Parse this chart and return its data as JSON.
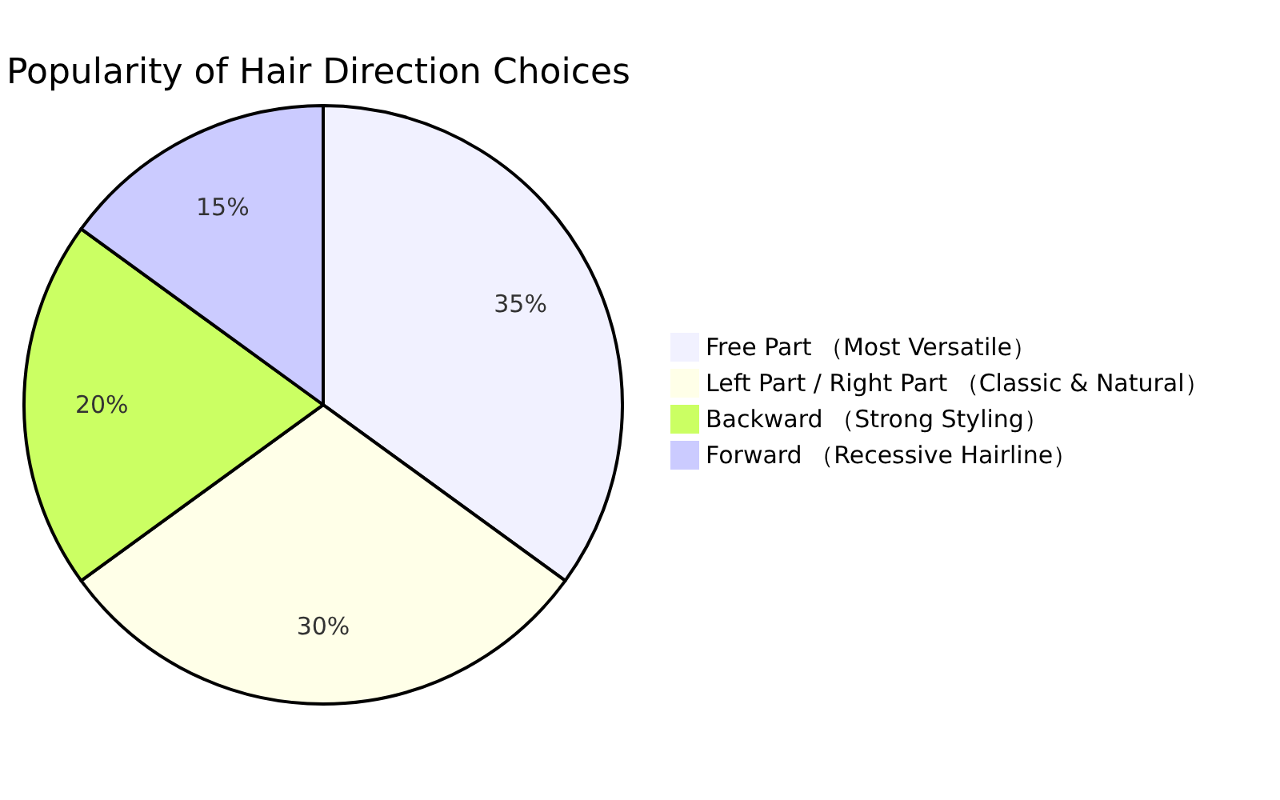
{
  "chart_data": {
    "type": "pie",
    "title": "Popularity of Hair Direction Choices",
    "categories": [
      "Free Part （Most Versatile）",
      "Left Part / Right Part （Classic & Natural）",
      "Backward （Strong Styling）",
      "Forward （Recessive Hairline）"
    ],
    "values": [
      35,
      30,
      20,
      15
    ],
    "colors": [
      "#f1f1ff",
      "#ffffe8",
      "#cbff63",
      "#cbcbff"
    ],
    "value_labels": [
      "35%",
      "30%",
      "20%",
      "15%"
    ],
    "legend": "right"
  }
}
